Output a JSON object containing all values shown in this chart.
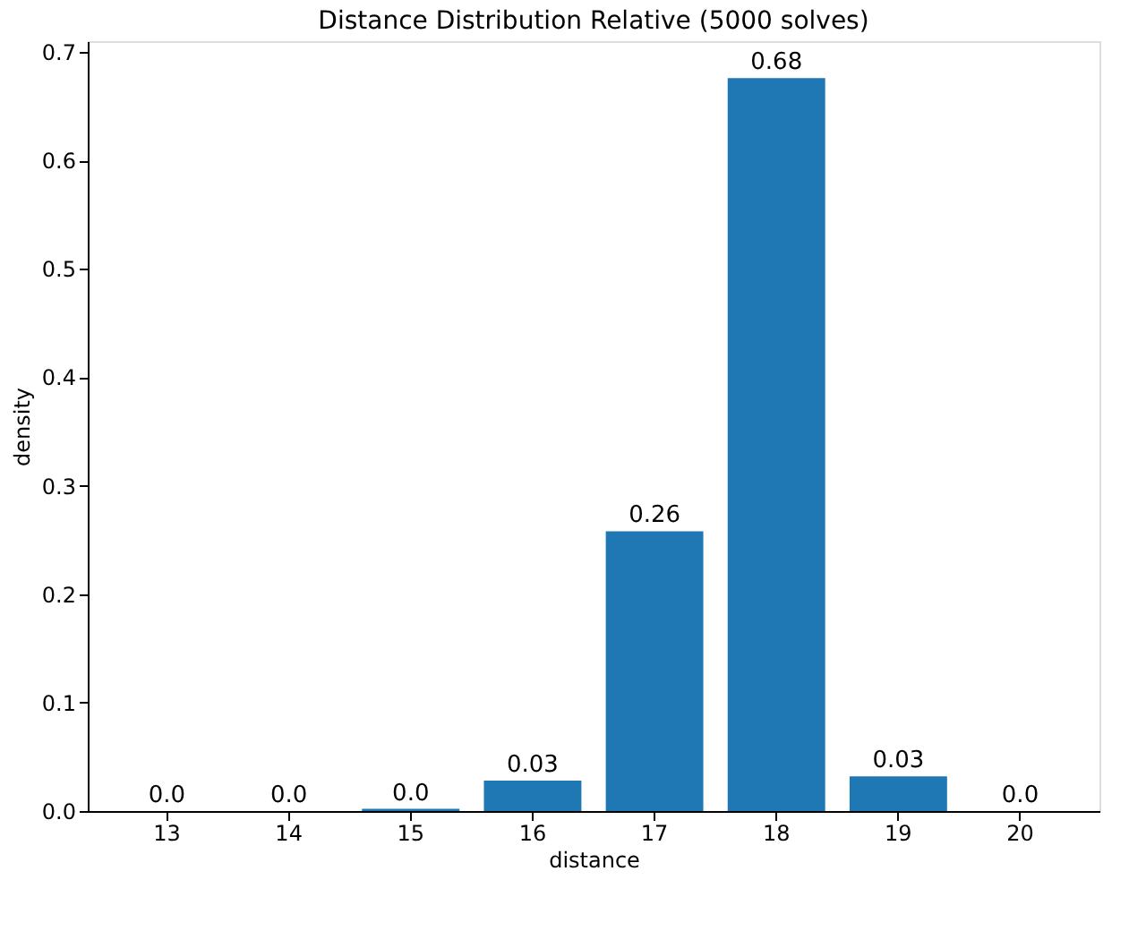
{
  "chart_data": {
    "type": "bar",
    "title": "Distance Distribution Relative (5000 solves)",
    "xlabel": "distance",
    "ylabel": "density",
    "categories": [
      "13",
      "14",
      "15",
      "16",
      "17",
      "18",
      "19",
      "20"
    ],
    "values": [
      0.0,
      0.0,
      0.002,
      0.028,
      0.258,
      0.676,
      0.032,
      0.0
    ],
    "value_labels": [
      "0.0",
      "0.0",
      "0.0",
      "0.03",
      "0.26",
      "0.68",
      "0.03",
      "0.0"
    ],
    "color": "#1f77b4",
    "ylim": [
      0,
      0.71
    ],
    "yticks": [
      {
        "value": 0,
        "label": "0.0"
      },
      0.1,
      0.2,
      0.3,
      0.4,
      0.5,
      0.6,
      0.7
    ],
    "grid": false
  }
}
